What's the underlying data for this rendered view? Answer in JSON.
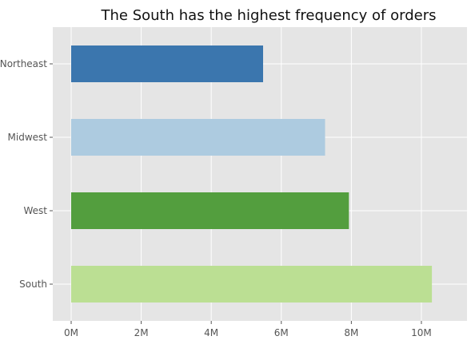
{
  "chart_data": {
    "type": "bar",
    "orientation": "horizontal",
    "title": "The South has the highest frequency of orders",
    "xlabel": "",
    "ylabel": "",
    "categories": [
      "South",
      "West",
      "Midwest",
      "Northeast"
    ],
    "values": [
      10300000,
      7930000,
      7250000,
      5480000
    ],
    "colors": [
      "#bbdf93",
      "#539e3e",
      "#adcbe0",
      "#3b76ae"
    ],
    "xlim": [
      0,
      10800000
    ],
    "xticks": [
      0,
      2000000,
      4000000,
      6000000,
      8000000,
      10000000
    ],
    "xtick_labels": [
      "0M",
      "2M",
      "4M",
      "6M",
      "8M",
      "10M"
    ],
    "grid": true,
    "background": "#e5e5e5",
    "grid_color": "#ffffff"
  }
}
